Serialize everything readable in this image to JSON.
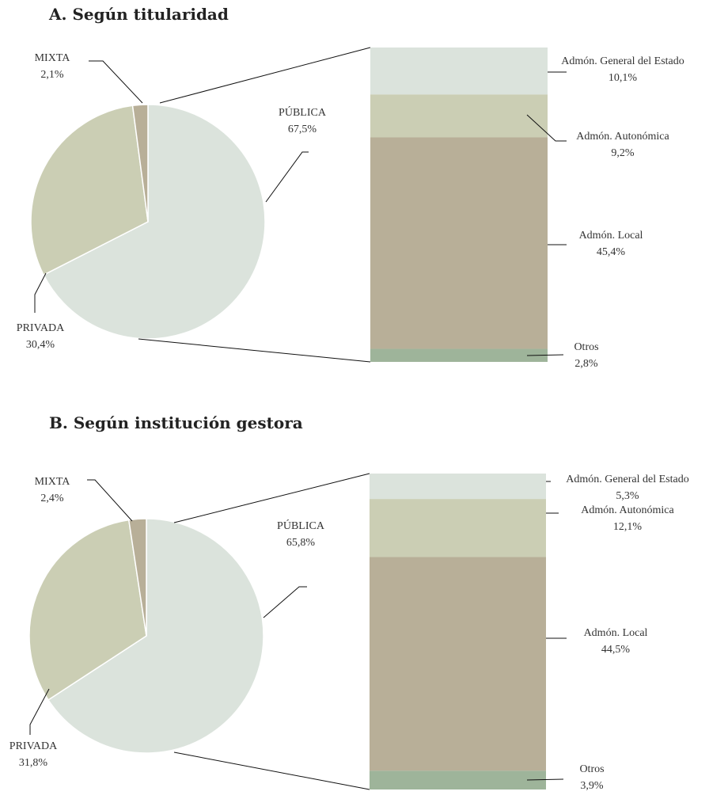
{
  "chart_data": [
    {
      "type": "pie",
      "title": "A. Según titularidad",
      "slices": [
        {
          "name": "PÚBLICA",
          "value": 67.5,
          "label": "67,5%",
          "color": "#dbe3dc"
        },
        {
          "name": "PRIVADA",
          "value": 30.4,
          "label": "30,4%",
          "color": "#cbceb4"
        },
        {
          "name": "MIXTA",
          "value": 2.1,
          "label": "2,1%",
          "color": "#b8af98"
        }
      ],
      "breakdown_of": "PÚBLICA",
      "breakdown": [
        {
          "name": "Admón. General del Estado",
          "value": 10.1,
          "label": "10,1%",
          "color": "#dbe3dc"
        },
        {
          "name": "Admón. Autonómica",
          "value": 9.2,
          "label": "9,2%",
          "color": "#cbceb4"
        },
        {
          "name": "Admón. Local",
          "value": 45.4,
          "label": "45,4%",
          "color": "#b8af98"
        },
        {
          "name": "Otros",
          "value": 2.8,
          "label": "2,8%",
          "color": "#9eb49a"
        }
      ]
    },
    {
      "type": "pie",
      "title": "B. Según institución gestora",
      "slices": [
        {
          "name": "PÚBLICA",
          "value": 65.8,
          "label": "65,8%",
          "color": "#dbe3dc"
        },
        {
          "name": "PRIVADA",
          "value": 31.8,
          "label": "31,8%",
          "color": "#cbceb4"
        },
        {
          "name": "MIXTA",
          "value": 2.4,
          "label": "2,4%",
          "color": "#b8af98"
        }
      ],
      "breakdown_of": "PÚBLICA",
      "breakdown": [
        {
          "name": "Admón. General del Estado",
          "value": 5.3,
          "label": "5,3%",
          "color": "#dbe3dc"
        },
        {
          "name": "Admón. Autonómica",
          "value": 12.1,
          "label": "12,1%",
          "color": "#cbceb4"
        },
        {
          "name": "Admón. Local",
          "value": 44.5,
          "label": "44,5%",
          "color": "#b8af98"
        },
        {
          "name": "Otros",
          "value": 3.9,
          "label": "3,9%",
          "color": "#9eb49a"
        }
      ]
    }
  ]
}
